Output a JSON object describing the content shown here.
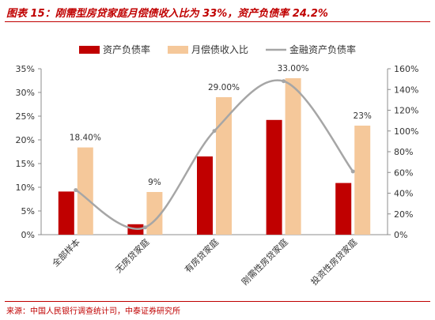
{
  "title": "图表 15：刚需型房贷家庭月偿债收入比为 33%，资产负债率 24.2%",
  "source": "来源：中国人民银行调查统计司，中泰证券研究所",
  "chart_data": {
    "type": "bar",
    "categories": [
      "全部样本",
      "无房贷家庭",
      "有房贷家庭",
      "刚需性房贷家庭",
      "投资性房贷家庭"
    ],
    "series": [
      {
        "name": "资产负债率",
        "type": "bar",
        "axis": "left",
        "color": "#c00000",
        "values": [
          9.1,
          2.2,
          16.5,
          24.2,
          10.9
        ]
      },
      {
        "name": "月偿债收入比",
        "type": "bar",
        "axis": "left",
        "color": "#f5c89a",
        "values": [
          18.4,
          9.0,
          29.0,
          33.0,
          23.0
        ],
        "labels": [
          "18.40%",
          "9%",
          "29.00%",
          "33.00%",
          "23%"
        ]
      },
      {
        "name": "金融资产负债率",
        "type": "line",
        "axis": "right",
        "color": "#a6a6a6",
        "values": [
          43,
          7,
          100,
          148,
          61
        ]
      }
    ],
    "y_left": {
      "min": 0,
      "max": 35,
      "step": 5,
      "ticks": [
        "0%",
        "5%",
        "10%",
        "15%",
        "20%",
        "25%",
        "30%",
        "35%"
      ]
    },
    "y_right": {
      "min": 0,
      "max": 160,
      "step": 20,
      "ticks": [
        "0%",
        "20%",
        "40%",
        "60%",
        "80%",
        "100%",
        "120%",
        "140%",
        "160%"
      ]
    },
    "legend_position": "top",
    "grid": false
  }
}
